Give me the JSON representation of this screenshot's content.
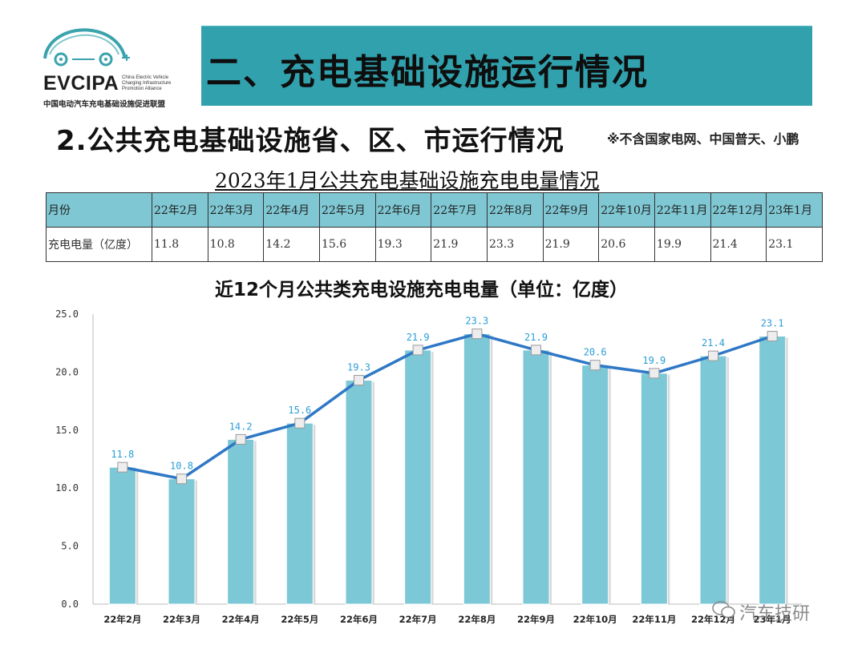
{
  "logo": {
    "main": "EVCIPA",
    "english": "China Electric Vehicle Charging Infrastructure Promotion Alliance",
    "chinese": "中国电动汽车充电基础设施促进联盟"
  },
  "banner_title": "二、充电基础设施运行情况",
  "subheading": "2.公共充电基础设施省、区、市运行情况",
  "note": "※不含国家电网、中国普天、小鹏",
  "table_title": "2023年1月公共充电基础设施充电电量情况",
  "table": {
    "header_label": "月份",
    "row_label": "充电电量（亿度）",
    "months": [
      "22年2月",
      "22年3月",
      "22年4月",
      "22年5月",
      "22年6月",
      "22年7月",
      "22年8月",
      "22年9月",
      "22年10月",
      "22年11月",
      "22年12月",
      "23年1月"
    ],
    "values": [
      "11.8",
      "10.8",
      "14.2",
      "15.6",
      "19.3",
      "21.9",
      "23.3",
      "21.9",
      "20.6",
      "19.9",
      "21.4",
      "23.1"
    ]
  },
  "chart_title": "近12个月公共类充电设施充电电量（单位：亿度）",
  "chart_data": {
    "type": "bar",
    "title": "近12个月公共类充电设施充电电量（单位：亿度）",
    "categories": [
      "22年2月",
      "22年3月",
      "22年4月",
      "22年5月",
      "22年6月",
      "22年7月",
      "22年8月",
      "22年9月",
      "22年10月",
      "22年11月",
      "22年12月",
      "23年1月"
    ],
    "series": [
      {
        "type": "bar",
        "values": [
          11.8,
          10.8,
          14.2,
          15.6,
          19.3,
          21.9,
          23.3,
          21.9,
          20.6,
          19.9,
          21.4,
          23.1
        ]
      },
      {
        "type": "line",
        "values": [
          11.8,
          10.8,
          14.2,
          15.6,
          19.3,
          21.9,
          23.3,
          21.9,
          20.6,
          19.9,
          21.4,
          23.1
        ]
      }
    ],
    "data_labels": [
      "11.8",
      "10.8",
      "14.2",
      "15.6",
      "19.3",
      "21.9",
      "23.3",
      "21.9",
      "20.6",
      "19.9",
      "21.4",
      "23.1"
    ],
    "ylim": [
      0,
      25
    ],
    "yticks": [
      "0.0",
      "5.0",
      "10.0",
      "15.0",
      "20.0",
      "25.0"
    ],
    "colors": {
      "bar": "#7dc8d6",
      "line": "#2e78c6",
      "label": "#2a9dd8",
      "banner": "#31a1ad"
    },
    "legend": "none",
    "grid": false
  },
  "watermark": "汽车技研"
}
